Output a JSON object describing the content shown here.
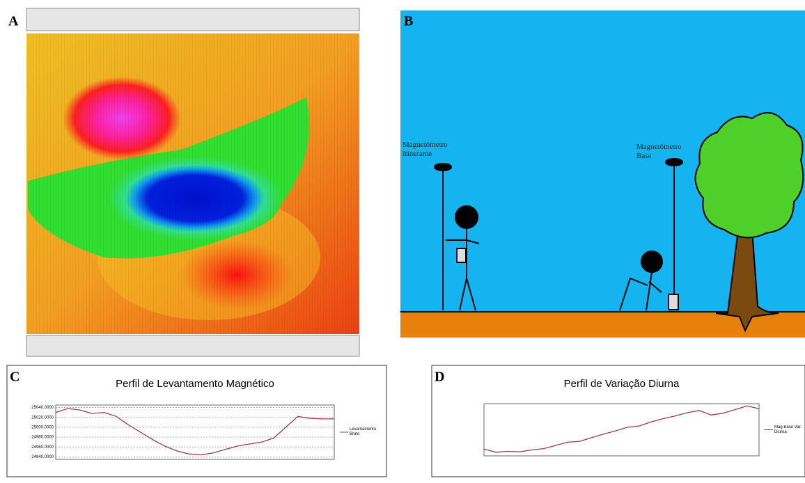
{
  "panels": {
    "a": {
      "letter": "A"
    },
    "b": {
      "letter": "B",
      "rover_label": "Magnetômetro Itinerante",
      "base_label": "Magnetômetro Base"
    }
  },
  "chart_data": [
    {
      "type": "line",
      "letter": "C",
      "title": "Perfil de Levantamento Magnético",
      "x": [
        0,
        1,
        2,
        3,
        4,
        5,
        6,
        7,
        8,
        9,
        10,
        11,
        12,
        13,
        14,
        15,
        16,
        17,
        18,
        19,
        20,
        21,
        22,
        23
      ],
      "xlim": [
        0,
        23
      ],
      "series": [
        {
          "name": "Levantamento Bruto",
          "color": "#9b3a4a",
          "values": [
            25030,
            25038,
            25035,
            25028,
            25030,
            25022,
            25005,
            24990,
            24975,
            24962,
            24952,
            24946,
            24944,
            24948,
            24955,
            24962,
            24966,
            24970,
            24978,
            25000,
            25022,
            25018,
            25017,
            25017
          ]
        }
      ],
      "ylim": [
        24935,
        25045
      ],
      "yticks": [
        {
          "value": 24940,
          "label": "24940.0000"
        },
        {
          "value": 24960,
          "label": "24960.0000"
        },
        {
          "value": 24980,
          "label": "24980.0000"
        },
        {
          "value": 25000,
          "label": "25000.0000"
        },
        {
          "value": 25020,
          "label": "25020.0000"
        },
        {
          "value": 25040,
          "label": "25040.0000"
        }
      ],
      "grid": true
    },
    {
      "type": "line",
      "letter": "D",
      "title": "Perfil de Variação Diurna",
      "x": [
        0,
        1,
        2,
        3,
        4,
        5,
        6,
        7,
        8,
        9,
        10,
        11,
        12,
        13,
        14,
        15,
        16,
        17,
        18,
        19,
        20,
        21,
        22,
        23
      ],
      "xlim": [
        0,
        23
      ],
      "series": [
        {
          "name": "Mag Base Var. Diurna",
          "color": "#9b3a4a",
          "values": [
            25089.5,
            25088.8,
            25089.0,
            25088.9,
            25089.3,
            25089.6,
            25090.3,
            25091.0,
            25091.2,
            25092.0,
            25092.8,
            25093.5,
            25094.3,
            25094.6,
            25095.5,
            25096.2,
            25096.8,
            25097.5,
            25098.0,
            25097.0,
            25097.4,
            25098.2,
            25099.0,
            25098.4
          ]
        }
      ],
      "ylim": [
        25088,
        25099.5
      ],
      "grid": true
    }
  ]
}
